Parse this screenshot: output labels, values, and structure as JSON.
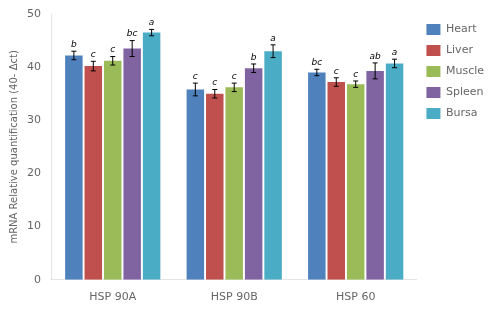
{
  "chart_data": {
    "type": "bar",
    "categories": [
      "HSP 90A",
      "HSP 90B",
      "HSP 60"
    ],
    "series": [
      {
        "name": "Heart",
        "color": "#4f81bd",
        "values": [
          42.2,
          35.8,
          39.0
        ],
        "errors": [
          0.8,
          1.2,
          0.6
        ],
        "annotations": [
          "b",
          "c",
          "bc"
        ]
      },
      {
        "name": "Liver",
        "color": "#c0504d",
        "values": [
          40.2,
          35.0,
          37.2
        ],
        "errors": [
          0.9,
          0.8,
          0.8
        ],
        "annotations": [
          "c",
          "c",
          "c"
        ]
      },
      {
        "name": "Muscle",
        "color": "#9bbb59",
        "values": [
          41.2,
          36.2,
          36.8
        ],
        "errors": [
          0.8,
          0.8,
          0.6
        ],
        "annotations": [
          "c",
          "c",
          "c"
        ]
      },
      {
        "name": "Spleen",
        "color": "#8064a2",
        "values": [
          43.5,
          39.8,
          39.3
        ],
        "errors": [
          1.5,
          0.8,
          1.5
        ],
        "annotations": [
          "bc",
          "b",
          "ab"
        ]
      },
      {
        "name": "Bursa",
        "color": "#4bacc6",
        "values": [
          46.5,
          43.0,
          40.7
        ],
        "errors": [
          0.6,
          1.2,
          0.8
        ],
        "annotations": [
          "a",
          "a",
          "a"
        ]
      }
    ],
    "ylabel": "mRNA Relative quantification (40- Δct)",
    "ylim": [
      0,
      50
    ],
    "yticks": [
      0,
      10,
      20,
      30,
      40,
      50
    ],
    "grid": false,
    "legend": "right"
  }
}
